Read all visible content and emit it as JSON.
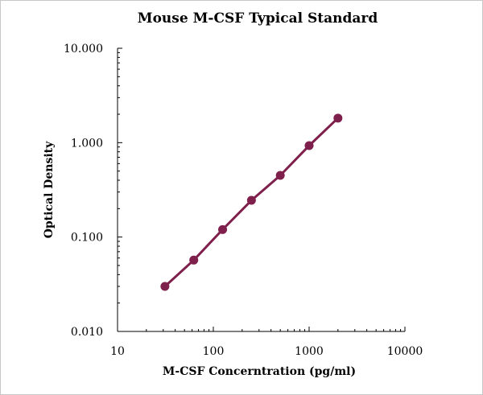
{
  "chart_data": {
    "type": "line",
    "title": "Mouse M-CSF Typical Standard",
    "xlabel": "M-CSF Concerntration (pg/ml)",
    "ylabel": "Optical Density",
    "x_scale": "log",
    "y_scale": "log",
    "xlim": [
      10,
      10000
    ],
    "ylim": [
      0.01,
      10
    ],
    "x_ticks": [
      "10",
      "100",
      "1000",
      "10000"
    ],
    "y_ticks": [
      "10.000",
      "1.000",
      "0.100",
      "0.010"
    ],
    "grid": false,
    "legend": "none",
    "series": [
      {
        "x": [
          31.25,
          62.5,
          125,
          250,
          500,
          1000,
          2000
        ],
        "y": [
          0.03,
          0.057,
          0.12,
          0.245,
          0.45,
          0.93,
          1.82
        ]
      }
    ],
    "colors": {
      "line": "#7f1f4c",
      "marker": "#7f1f4c",
      "axis": "#000000"
    }
  }
}
